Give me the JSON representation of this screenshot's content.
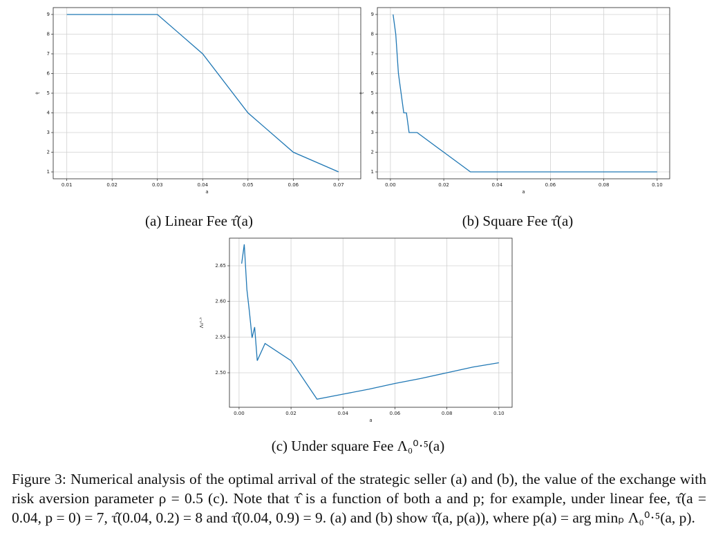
{
  "chart_data": [
    {
      "type": "line",
      "caption": "(a) Linear Fee τ̂(a)",
      "xlabel": "a",
      "ylabel": "τ̂",
      "color": "#1f77b4",
      "grid": true,
      "x": [
        0.01,
        0.02,
        0.03,
        0.04,
        0.05,
        0.06,
        0.07
      ],
      "values": [
        9,
        9,
        9,
        7,
        4,
        2,
        1
      ],
      "xlim": [
        0.007,
        0.0749
      ],
      "ylim": [
        0.65,
        9.35
      ],
      "xticks": [
        0.01,
        0.02,
        0.03,
        0.04,
        0.05,
        0.06,
        0.07
      ],
      "yticks": [
        1,
        2,
        3,
        4,
        5,
        6,
        7,
        8,
        9
      ]
    },
    {
      "type": "line",
      "caption": "(b) Square Fee τ̂(a)",
      "xlabel": "a",
      "ylabel": "τ̂",
      "color": "#1f77b4",
      "grid": true,
      "x": [
        0.001,
        0.002,
        0.003,
        0.005,
        0.006,
        0.007,
        0.01,
        0.02,
        0.03,
        0.04,
        0.05,
        0.06,
        0.07,
        0.08,
        0.09,
        0.1
      ],
      "values": [
        9,
        8,
        6,
        4,
        4,
        3,
        3,
        2,
        1,
        1,
        1,
        1,
        1,
        1,
        1,
        1
      ],
      "xlim": [
        -0.0049,
        0.1047
      ],
      "ylim": [
        0.65,
        9.35
      ],
      "xticks": [
        {
          "value": 0,
          "label": "0.00"
        },
        0.02,
        0.04,
        0.06,
        0.08,
        {
          "value": 0.1,
          "label": "0.10"
        }
      ],
      "yticks": [
        1,
        2,
        3,
        4,
        5,
        6,
        7,
        8,
        9
      ]
    },
    {
      "type": "line",
      "caption": "(c) Under square Fee Λ₀⁰·⁵(a)",
      "xlabel": "a",
      "ylabel": "Λ₀⁰·⁵",
      "color": "#1f77b4",
      "grid": true,
      "x": [
        0.001,
        0.002,
        0.003,
        0.004,
        0.005,
        0.006,
        0.007,
        0.01,
        0.02,
        0.03,
        0.04,
        0.05,
        0.06,
        0.07,
        0.08,
        0.09,
        0.1
      ],
      "values": [
        2.653,
        2.68,
        2.617,
        2.585,
        2.549,
        2.564,
        2.517,
        2.541,
        2.517,
        2.463,
        2.47,
        2.477,
        2.485,
        2.492,
        2.5,
        2.508,
        2.514
      ],
      "xlim": [
        -0.0037,
        0.1051
      ],
      "ylim": [
        2.4516,
        2.6887
      ],
      "xticks": [
        {
          "value": 0,
          "label": "0.00"
        },
        0.02,
        0.04,
        0.06,
        0.08,
        {
          "value": 0.1,
          "label": "0.10"
        }
      ],
      "yticks": [
        {
          "value": 2.5,
          "label": "2.50"
        },
        2.55,
        {
          "value": 2.6,
          "label": "2.60"
        },
        2.65
      ]
    }
  ],
  "caption": "Figure 3: Numerical analysis of the optimal arrival of the strategic seller (a) and (b), the value of the exchange with risk aversion parameter ρ = 0.5 (c). Note that τ̂ is a function of both a and p; for example, under linear fee, τ̂(a = 0.04, p = 0) = 7, τ̂(0.04, 0.2) = 8 and τ̂(0.04, 0.9) = 9. (a) and (b) show τ̂(a, p(a)), where p(a) = arg minₚ Λ₀⁰·⁵(a, p)."
}
